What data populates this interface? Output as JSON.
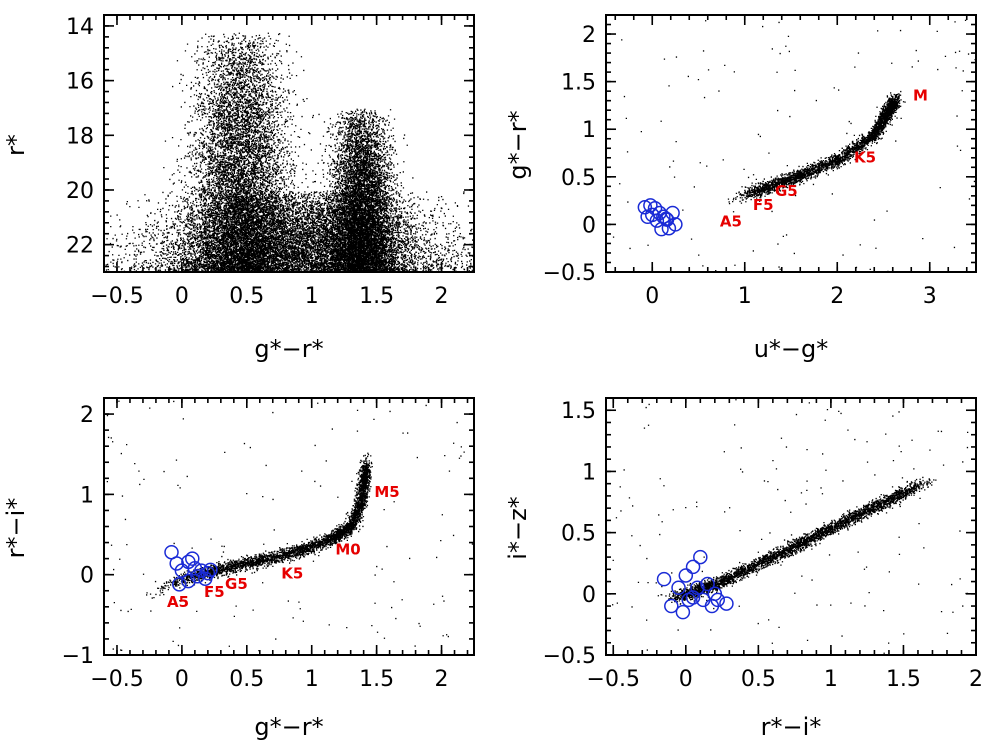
{
  "chart_data": [
    {
      "id": "a",
      "type": "scatter",
      "xlabel": "g*−r*",
      "ylabel": "r*",
      "xlim": [
        -0.6,
        2.25
      ],
      "ylim": [
        23.0,
        13.6
      ],
      "y_inverted": true,
      "xticks": [
        -0.5,
        0,
        0.5,
        1,
        1.5,
        2
      ],
      "xtick_labels": [
        "−0.5",
        "0",
        "0.5",
        "1",
        "1.5",
        "2"
      ],
      "yticks": [
        14,
        16,
        18,
        20,
        22
      ],
      "ytick_labels": [
        "14",
        "16",
        "18",
        "20",
        "22"
      ],
      "point_density_profile": {
        "description": "two dense vertical bands at g-r≈0.4 and g-r≈1.4, broad plume at faint magnitudes",
        "bands": [
          {
            "x_center": 0.45,
            "x_spread": 0.15,
            "y_range": [
              14.2,
              23.0
            ],
            "weight": 0.35
          },
          {
            "x_center": 1.38,
            "x_spread": 0.1,
            "y_range": [
              17.0,
              23.0
            ],
            "weight": 0.3
          },
          {
            "x_center": 0.9,
            "x_spread": 0.45,
            "y_range": [
              20.0,
              23.0
            ],
            "weight": 0.35
          }
        ]
      },
      "blue_circles": [],
      "annotations": []
    },
    {
      "id": "b",
      "type": "scatter",
      "xlabel": "u*−g*",
      "ylabel": "g*−r*",
      "xlim": [
        -0.5,
        3.5
      ],
      "ylim": [
        -0.5,
        2.2
      ],
      "xticks": [
        0,
        1,
        2,
        3
      ],
      "xtick_labels": [
        "0",
        "1",
        "2",
        "3"
      ],
      "yticks": [
        -0.5,
        0,
        0.5,
        1,
        1.5,
        2
      ],
      "ytick_labels": [
        "−0.5",
        "0",
        "0.5",
        "1",
        "1.5",
        "2"
      ],
      "stellar_locus": [
        [
          0.8,
          0.25
        ],
        [
          1.2,
          0.38
        ],
        [
          1.6,
          0.52
        ],
        [
          2.0,
          0.68
        ],
        [
          2.4,
          0.95
        ],
        [
          2.55,
          1.2
        ],
        [
          2.65,
          1.35
        ]
      ],
      "blue_circles": [
        [
          -0.08,
          0.18
        ],
        [
          -0.02,
          0.2
        ],
        [
          0.03,
          0.17
        ],
        [
          0.08,
          0.12
        ],
        [
          0.12,
          0.08
        ],
        [
          0.16,
          0.05
        ],
        [
          0.22,
          0.12
        ],
        [
          0.25,
          0.0
        ],
        [
          0.05,
          0.04
        ],
        [
          0.0,
          0.1
        ],
        [
          -0.05,
          0.08
        ],
        [
          0.1,
          -0.05
        ],
        [
          0.18,
          -0.04
        ],
        [
          0.15,
          0.06
        ]
      ],
      "annotations": [
        {
          "text": "M",
          "x": 2.9,
          "y": 1.3
        },
        {
          "text": "K5",
          "x": 2.3,
          "y": 0.65
        },
        {
          "text": "G5",
          "x": 1.45,
          "y": 0.3
        },
        {
          "text": "F5",
          "x": 1.2,
          "y": 0.15
        },
        {
          "text": "A5",
          "x": 0.85,
          "y": -0.02
        }
      ]
    },
    {
      "id": "c",
      "type": "scatter",
      "xlabel": "g*−r*",
      "ylabel": "r*−i*",
      "xlim": [
        -0.6,
        2.25
      ],
      "ylim": [
        -1.0,
        2.2
      ],
      "xticks": [
        -0.5,
        0,
        0.5,
        1,
        1.5,
        2
      ],
      "xtick_labels": [
        "−0.5",
        "0",
        "0.5",
        "1",
        "1.5",
        "2"
      ],
      "yticks": [
        -1,
        0,
        1,
        2
      ],
      "ytick_labels": [
        "−1",
        "0",
        "1",
        "2"
      ],
      "stellar_locus": [
        [
          -0.4,
          -0.35
        ],
        [
          0.0,
          -0.05
        ],
        [
          0.3,
          0.08
        ],
        [
          0.6,
          0.18
        ],
        [
          0.9,
          0.3
        ],
        [
          1.15,
          0.45
        ],
        [
          1.3,
          0.6
        ],
        [
          1.38,
          0.9
        ],
        [
          1.4,
          1.2
        ],
        [
          1.42,
          1.45
        ]
      ],
      "blue_circles": [
        [
          -0.08,
          0.28
        ],
        [
          -0.04,
          0.14
        ],
        [
          0.0,
          0.05
        ],
        [
          0.05,
          0.16
        ],
        [
          0.08,
          0.2
        ],
        [
          0.1,
          0.08
        ],
        [
          0.12,
          -0.02
        ],
        [
          0.15,
          0.05
        ],
        [
          0.18,
          -0.05
        ],
        [
          0.2,
          0.02
        ],
        [
          0.05,
          -0.08
        ],
        [
          0.22,
          0.06
        ],
        [
          -0.02,
          -0.12
        ]
      ],
      "annotations": [
        {
          "text": "M5",
          "x": 1.58,
          "y": 0.97
        },
        {
          "text": "M0",
          "x": 1.28,
          "y": 0.25
        },
        {
          "text": "K5",
          "x": 0.85,
          "y": -0.05
        },
        {
          "text": "G5",
          "x": 0.42,
          "y": -0.18
        },
        {
          "text": "F5",
          "x": 0.25,
          "y": -0.28
        },
        {
          "text": "A5",
          "x": -0.03,
          "y": -0.4
        }
      ]
    },
    {
      "id": "d",
      "type": "scatter",
      "xlabel": "r*−i*",
      "ylabel": "i*−z*",
      "xlim": [
        -0.55,
        2.0
      ],
      "ylim": [
        -0.5,
        1.6
      ],
      "xticks": [
        -0.5,
        0,
        0.5,
        1,
        1.5,
        2
      ],
      "xtick_labels": [
        "−0.5",
        "0",
        "0.5",
        "1",
        "1.5",
        "2"
      ],
      "yticks": [
        -0.5,
        0,
        0.5,
        1,
        1.5
      ],
      "ytick_labels": [
        "−0.5",
        "0",
        "0.5",
        "1",
        "1.5"
      ],
      "stellar_locus": [
        [
          -0.2,
          -0.05
        ],
        [
          0.0,
          0.0
        ],
        [
          0.2,
          0.08
        ],
        [
          0.5,
          0.25
        ],
        [
          0.8,
          0.42
        ],
        [
          1.1,
          0.6
        ],
        [
          1.4,
          0.77
        ],
        [
          1.7,
          0.95
        ]
      ],
      "blue_circles": [
        [
          -0.1,
          -0.1
        ],
        [
          -0.05,
          0.05
        ],
        [
          0.0,
          0.15
        ],
        [
          0.02,
          -0.05
        ],
        [
          0.05,
          0.22
        ],
        [
          0.08,
          0.05
        ],
        [
          0.1,
          0.3
        ],
        [
          0.12,
          -0.05
        ],
        [
          0.15,
          0.08
        ],
        [
          0.18,
          -0.1
        ],
        [
          0.22,
          -0.05
        ],
        [
          0.28,
          -0.08
        ],
        [
          -0.15,
          0.12
        ],
        [
          -0.02,
          -0.15
        ],
        [
          0.05,
          -0.03
        ],
        [
          0.2,
          0.0
        ]
      ],
      "annotations": []
    }
  ]
}
